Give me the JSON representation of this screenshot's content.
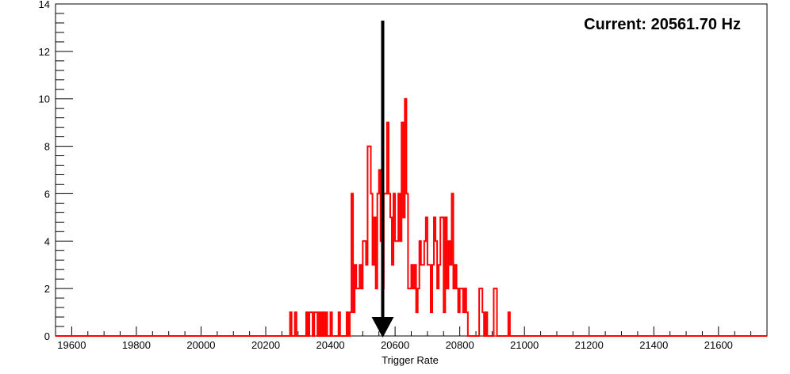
{
  "chart_data": {
    "type": "histogram",
    "xlabel": "Trigger Rate",
    "ylabel": "",
    "xlim": [
      19550,
      21750
    ],
    "ylim": [
      0,
      14
    ],
    "bin_width": 5,
    "x_ticks": [
      19600,
      19800,
      20000,
      20200,
      20400,
      20600,
      20800,
      21000,
      21200,
      21400,
      21600
    ],
    "y_ticks": [
      0,
      2,
      4,
      6,
      8,
      10,
      12,
      14
    ],
    "grid": false,
    "line_color": "#ff0000",
    "arrow_color": "#000000",
    "annotation": {
      "text": "Current: 20561.70 Hz",
      "value": 20561.7,
      "arrow_top": 13.3
    },
    "bins": [
      {
        "x": 20275,
        "count": 1
      },
      {
        "x": 20290,
        "count": 1
      },
      {
        "x": 20325,
        "count": 1
      },
      {
        "x": 20335,
        "count": 1
      },
      {
        "x": 20340,
        "count": 1
      },
      {
        "x": 20350,
        "count": 1
      },
      {
        "x": 20355,
        "count": 1
      },
      {
        "x": 20365,
        "count": 1
      },
      {
        "x": 20375,
        "count": 1
      },
      {
        "x": 20385,
        "count": 1
      },
      {
        "x": 20400,
        "count": 1
      },
      {
        "x": 20425,
        "count": 1
      },
      {
        "x": 20450,
        "count": 1
      },
      {
        "x": 20460,
        "count": 1
      },
      {
        "x": 20465,
        "count": 6
      },
      {
        "x": 20470,
        "count": 1
      },
      {
        "x": 20475,
        "count": 3
      },
      {
        "x": 20480,
        "count": 2
      },
      {
        "x": 20485,
        "count": 2
      },
      {
        "x": 20490,
        "count": 3
      },
      {
        "x": 20495,
        "count": 2
      },
      {
        "x": 20500,
        "count": 4
      },
      {
        "x": 20505,
        "count": 4
      },
      {
        "x": 20510,
        "count": 3
      },
      {
        "x": 20515,
        "count": 8
      },
      {
        "x": 20520,
        "count": 8
      },
      {
        "x": 20525,
        "count": 6
      },
      {
        "x": 20530,
        "count": 3
      },
      {
        "x": 20535,
        "count": 5
      },
      {
        "x": 20540,
        "count": 2
      },
      {
        "x": 20545,
        "count": 6
      },
      {
        "x": 20550,
        "count": 7
      },
      {
        "x": 20555,
        "count": 4
      },
      {
        "x": 20560,
        "count": 2
      },
      {
        "x": 20565,
        "count": 6
      },
      {
        "x": 20570,
        "count": 6
      },
      {
        "x": 20575,
        "count": 9
      },
      {
        "x": 20580,
        "count": 6
      },
      {
        "x": 20585,
        "count": 5
      },
      {
        "x": 20590,
        "count": 3
      },
      {
        "x": 20595,
        "count": 6
      },
      {
        "x": 20600,
        "count": 4
      },
      {
        "x": 20605,
        "count": 4
      },
      {
        "x": 20610,
        "count": 6
      },
      {
        "x": 20615,
        "count": 4
      },
      {
        "x": 20620,
        "count": 9
      },
      {
        "x": 20625,
        "count": 5
      },
      {
        "x": 20630,
        "count": 10
      },
      {
        "x": 20635,
        "count": 6
      },
      {
        "x": 20640,
        "count": 2
      },
      {
        "x": 20645,
        "count": 2
      },
      {
        "x": 20650,
        "count": 3
      },
      {
        "x": 20655,
        "count": 2
      },
      {
        "x": 20660,
        "count": 3
      },
      {
        "x": 20665,
        "count": 1
      },
      {
        "x": 20670,
        "count": 2
      },
      {
        "x": 20675,
        "count": 4
      },
      {
        "x": 20680,
        "count": 3
      },
      {
        "x": 20685,
        "count": 3
      },
      {
        "x": 20690,
        "count": 4
      },
      {
        "x": 20695,
        "count": 5
      },
      {
        "x": 20700,
        "count": 3
      },
      {
        "x": 20705,
        "count": 3
      },
      {
        "x": 20710,
        "count": 1
      },
      {
        "x": 20715,
        "count": 3
      },
      {
        "x": 20720,
        "count": 5
      },
      {
        "x": 20725,
        "count": 4
      },
      {
        "x": 20730,
        "count": 2
      },
      {
        "x": 20735,
        "count": 3
      },
      {
        "x": 20740,
        "count": 5
      },
      {
        "x": 20745,
        "count": 5
      },
      {
        "x": 20750,
        "count": 1
      },
      {
        "x": 20755,
        "count": 5
      },
      {
        "x": 20760,
        "count": 2
      },
      {
        "x": 20765,
        "count": 4
      },
      {
        "x": 20770,
        "count": 3
      },
      {
        "x": 20775,
        "count": 6
      },
      {
        "x": 20780,
        "count": 2
      },
      {
        "x": 20785,
        "count": 3
      },
      {
        "x": 20790,
        "count": 2
      },
      {
        "x": 20795,
        "count": 1
      },
      {
        "x": 20800,
        "count": 2
      },
      {
        "x": 20805,
        "count": 2
      },
      {
        "x": 20810,
        "count": 1
      },
      {
        "x": 20815,
        "count": 2
      },
      {
        "x": 20820,
        "count": 1
      },
      {
        "x": 20860,
        "count": 2
      },
      {
        "x": 20865,
        "count": 2
      },
      {
        "x": 20870,
        "count": 1
      },
      {
        "x": 20880,
        "count": 1
      },
      {
        "x": 20905,
        "count": 2
      },
      {
        "x": 20910,
        "count": 2
      },
      {
        "x": 20950,
        "count": 1
      }
    ]
  }
}
